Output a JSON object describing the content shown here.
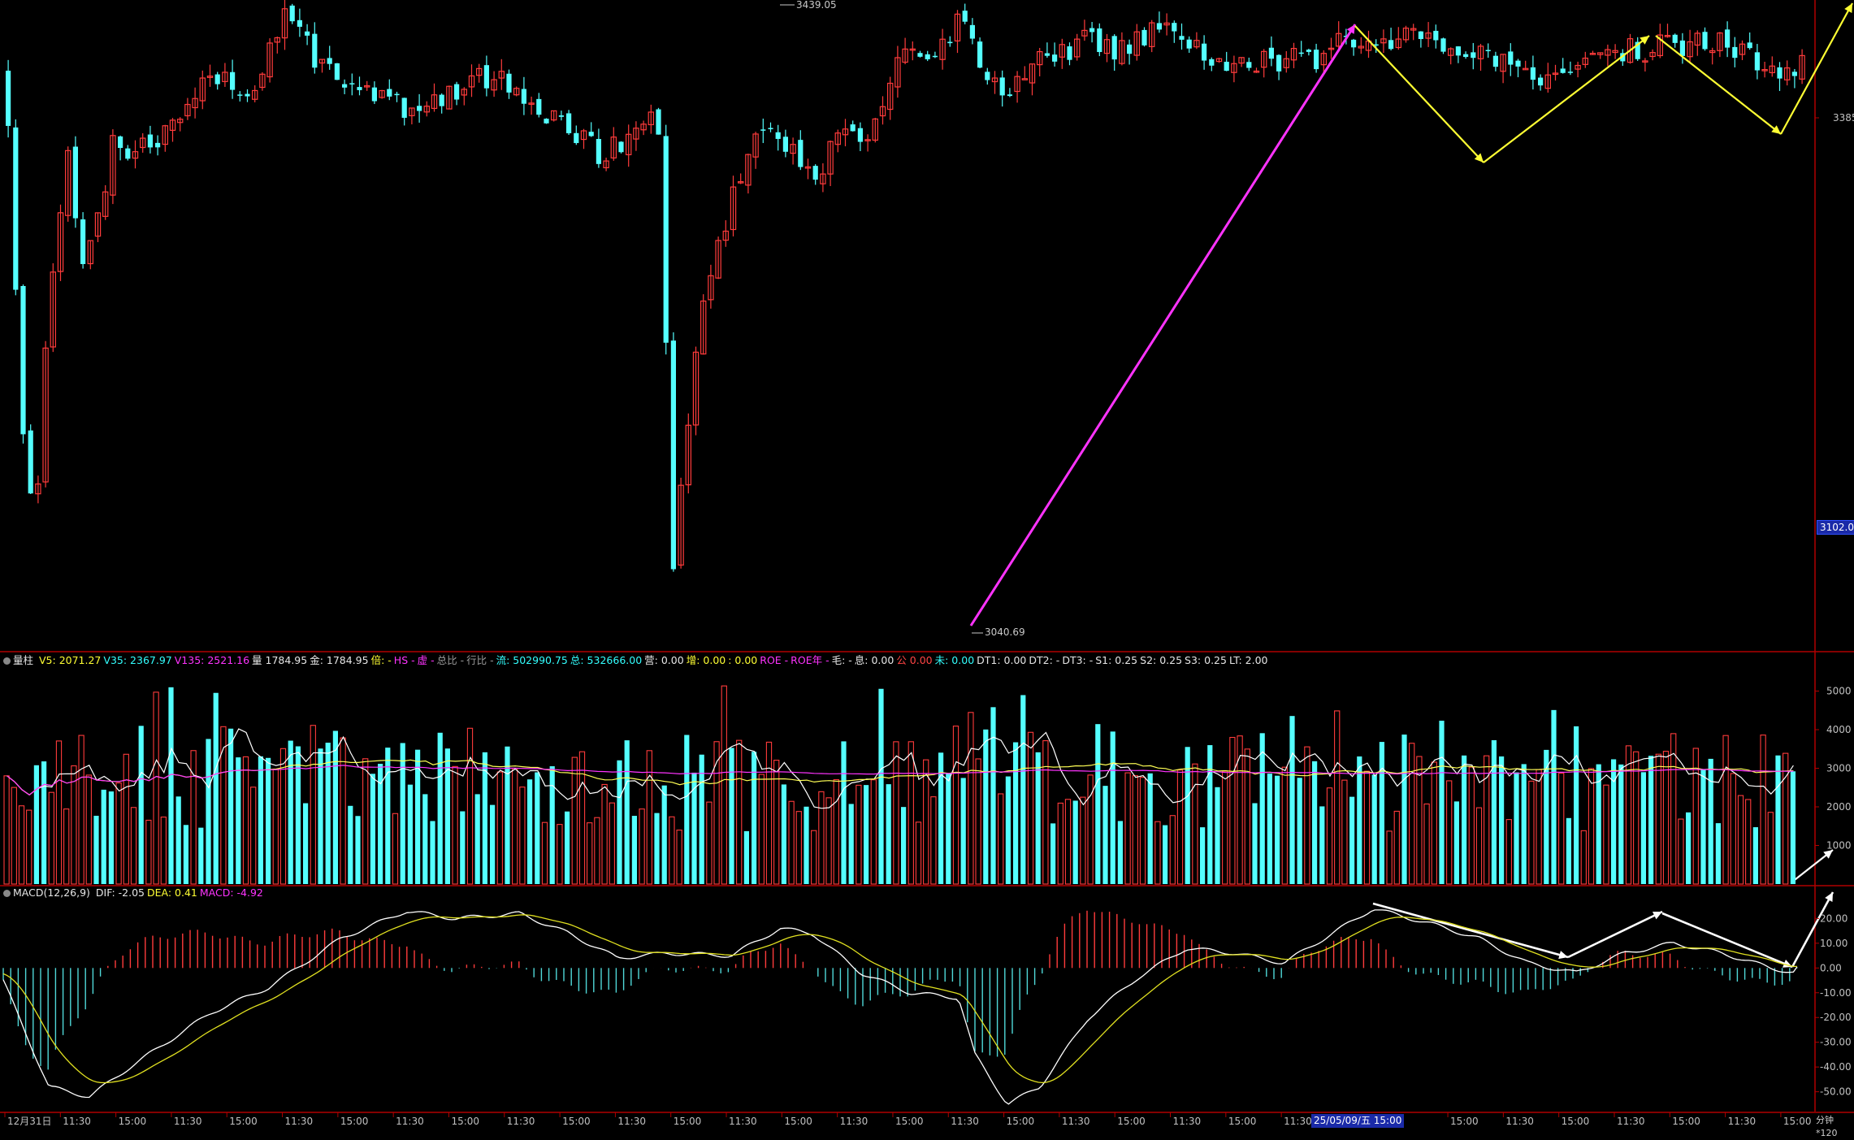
{
  "chart_data": [
    {
      "type": "candlestick",
      "title": "",
      "price_labels": {
        "high": "3439.05",
        "low": "3040.69"
      },
      "price_axis_ticks": [
        "3385",
        "3102.0"
      ],
      "ylim": [
        3040.69,
        3439.05
      ]
    },
    {
      "type": "bar",
      "series_name": "量柱",
      "indicators": [
        {
          "k": "V5:",
          "v": "2071.27"
        },
        {
          "k": "V35:",
          "v": "2367.97"
        },
        {
          "k": "V135:",
          "v": "2521.16"
        },
        {
          "k": "量",
          "v": "1784.95"
        },
        {
          "k": "金:",
          "v": "1784.95"
        },
        {
          "k": "倍:",
          "v": "-"
        },
        {
          "k": "HS",
          "v": "-"
        },
        {
          "k": "虚",
          "v": "-"
        },
        {
          "k": "总比",
          "v": "-"
        },
        {
          "k": "行比",
          "v": "-"
        },
        {
          "k": "流:",
          "v": "502990.75"
        },
        {
          "k": "总:",
          "v": "532666.00"
        },
        {
          "k": "营:",
          "v": "0.00"
        },
        {
          "k": "增:",
          "v": "0.00"
        },
        {
          "k": ":",
          "v": "0.00"
        },
        {
          "k": "ROE",
          "v": "-"
        },
        {
          "k": "ROE年",
          "v": "-"
        },
        {
          "k": "毛:",
          "v": "-"
        },
        {
          "k": "息:",
          "v": "0.00"
        },
        {
          "k": "公",
          "v": "0.00"
        },
        {
          "k": "未:",
          "v": "0.00"
        },
        {
          "k": "DT1:",
          "v": "0.00"
        },
        {
          "k": "DT2:",
          "v": "-"
        },
        {
          "k": "DT3:",
          "v": "-"
        },
        {
          "k": "S1:",
          "v": "0.25"
        },
        {
          "k": "S2:",
          "v": "0.25"
        },
        {
          "k": "S3:",
          "v": "0.25"
        },
        {
          "k": "LT:",
          "v": "2.00"
        }
      ],
      "yticks": [
        "5000",
        "4000",
        "3000",
        "2000",
        "1000"
      ],
      "ylim": [
        0,
        5600
      ]
    },
    {
      "type": "bar",
      "series_name": "MACD(12,26,9)",
      "indicators": [
        {
          "k": "DIF:",
          "v": "-2.05"
        },
        {
          "k": "DEA:",
          "v": "0.41"
        },
        {
          "k": "MACD:",
          "v": "-4.92"
        }
      ],
      "yticks": [
        "20.00",
        "10.00",
        "0.00",
        "-10.00",
        "-20.00",
        "-30.00",
        "-40.00",
        "-50.00"
      ],
      "ylim": [
        -58,
        28
      ]
    }
  ],
  "time_axis": {
    "labels": [
      "12月31日",
      "11:30",
      "15:00",
      "11:30",
      "15:00",
      "11:30",
      "15:00",
      "11:30",
      "15:00",
      "11:30",
      "15:00",
      "11:30",
      "15:00",
      "11:30",
      "15:00",
      "11:30",
      "15:00",
      "11:30",
      "15:00",
      "11:30",
      "15:00",
      "11:30",
      "15:00",
      "11:30",
      "15:00",
      "11:30",
      "15:00",
      "11:30",
      "15:00",
      "11:30",
      "15:00",
      "11:30",
      "15:00"
    ],
    "highlight": "25/05/09/五 15:00",
    "period": "分钟*120"
  },
  "colors": {
    "up": "#ff3b3b",
    "down": "#54ffff",
    "bg": "#000000",
    "frame": "#b00000",
    "magenta": "#ff33ff",
    "yellow": "#ffff33",
    "white": "#ffffff"
  }
}
